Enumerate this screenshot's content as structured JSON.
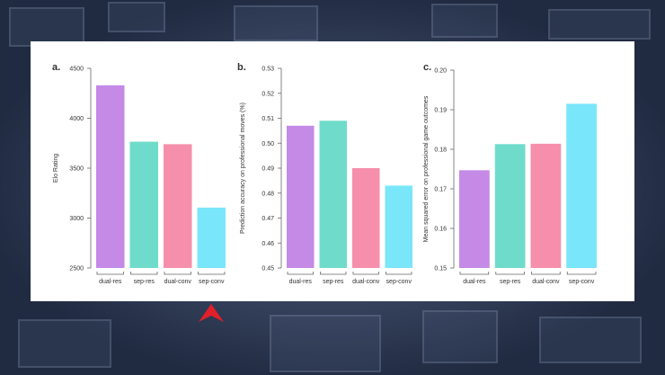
{
  "chart_data": [
    {
      "type": "bar",
      "panel_label": "a.",
      "categories": [
        "dual-res",
        "sep-res",
        "dual-conv",
        "sep-conv"
      ],
      "values": [
        4330,
        3765,
        3740,
        3105
      ],
      "ylabel": "Elo Rating",
      "xlabel": "",
      "ylim": [
        2500,
        4500
      ],
      "yticks": [
        "2500",
        "3000",
        "3500",
        "4000",
        "4500"
      ],
      "ytick_values": [
        2500,
        3000,
        3500,
        4000,
        4500
      ]
    },
    {
      "type": "bar",
      "panel_label": "b.",
      "categories": [
        "dual-res",
        "sep-res",
        "dual-conv",
        "sep-conv"
      ],
      "values": [
        0.507,
        0.509,
        0.49,
        0.483
      ],
      "ylabel": "Prediction accuracy on professional moves (%)",
      "xlabel": "",
      "ylim": [
        0.45,
        0.53
      ],
      "yticks": [
        "0.45",
        "0.46",
        "0.47",
        "0.48",
        "0.49",
        "0.50",
        "0.51",
        "0.52",
        "0.53"
      ],
      "ytick_values": [
        0.45,
        0.46,
        0.47,
        0.48,
        0.49,
        0.5,
        0.51,
        0.52,
        0.53
      ]
    },
    {
      "type": "bar",
      "panel_label": "c.",
      "categories": [
        "dual-res",
        "sep-res",
        "dual-conv",
        "sep-conv"
      ],
      "values": [
        0.1747,
        0.1813,
        0.1814,
        0.1915
      ],
      "ylabel": "Mean squared error on professional game outcomes",
      "xlabel": "",
      "ylim": [
        0.15,
        0.2
      ],
      "yticks": [
        "0.15",
        "0.16",
        "0.17",
        "0.18",
        "0.19",
        "0.20"
      ],
      "ytick_values": [
        0.15,
        0.16,
        0.17,
        0.18,
        0.19,
        0.2
      ]
    }
  ],
  "colors": {
    "dual-res": "#c48ae6",
    "sep-res": "#6fdccb",
    "dual-conv": "#f58fab",
    "sep-conv": "#7ae6fa",
    "axis": "#666666",
    "text": "#333333",
    "marker": "#e0202a"
  },
  "overlay": {
    "marker_icon": "red-arrowhead-icon",
    "points_to": "sep-conv"
  }
}
